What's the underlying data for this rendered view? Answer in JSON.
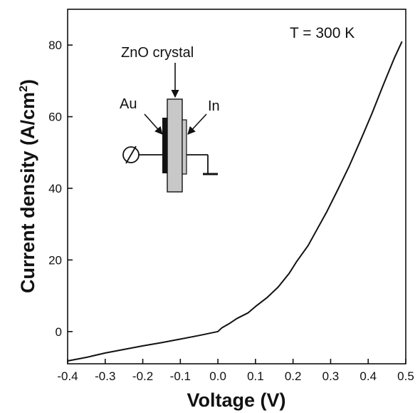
{
  "chart_data": {
    "type": "line",
    "title": "",
    "xlabel": "Voltage (V)",
    "ylabel_main": "Current density (A/cm",
    "ylabel_sup": "2",
    "ylabel_close": ")",
    "xlim": [
      -0.4,
      0.5
    ],
    "ylim": [
      -9,
      90
    ],
    "x_ticks": [
      {
        "value": -0.4,
        "label": "-0.4"
      },
      {
        "value": -0.3,
        "label": "-0.3"
      },
      {
        "value": -0.2,
        "label": "-0.2"
      },
      {
        "value": -0.1,
        "label": "-0.1"
      },
      {
        "value": 0.0,
        "label": "0.0"
      },
      {
        "value": 0.1,
        "label": "0.1"
      },
      {
        "value": 0.2,
        "label": "0.2"
      },
      {
        "value": 0.3,
        "label": "0.3"
      },
      {
        "value": 0.4,
        "label": "0.4"
      },
      {
        "value": 0.5,
        "label": "0.5"
      }
    ],
    "y_ticks": [
      {
        "value": 0,
        "label": "0"
      },
      {
        "value": 20,
        "label": "20"
      },
      {
        "value": 40,
        "label": "40"
      },
      {
        "value": 60,
        "label": "60"
      },
      {
        "value": 80,
        "label": "80"
      }
    ],
    "grid": false,
    "series": [
      {
        "color": "#111111",
        "x": [
          -0.4,
          -0.35,
          -0.3,
          -0.25,
          -0.2,
          -0.15,
          -0.1,
          -0.05,
          0.0,
          0.01,
          0.03,
          0.05,
          0.08,
          0.1,
          0.13,
          0.16,
          0.19,
          0.21,
          0.24,
          0.26,
          0.29,
          0.32,
          0.35,
          0.38,
          0.41,
          0.44,
          0.47,
          0.49
        ],
        "y": [
          -8.2,
          -7.2,
          -6.0,
          -5.0,
          -4.0,
          -3.1,
          -2.1,
          -1.1,
          0.0,
          1.0,
          2.2,
          3.6,
          5.2,
          7.0,
          9.4,
          12.4,
          16.3,
          19.6,
          24.0,
          27.8,
          33.5,
          39.8,
          46.3,
          53.5,
          60.9,
          68.8,
          76.5,
          81.0
        ]
      }
    ],
    "annotations": {
      "temperature": "T = 300 K",
      "inset": {
        "crystal_label": "ZnO crystal",
        "left_contact_label": "Au",
        "right_contact_label": "In"
      }
    }
  }
}
